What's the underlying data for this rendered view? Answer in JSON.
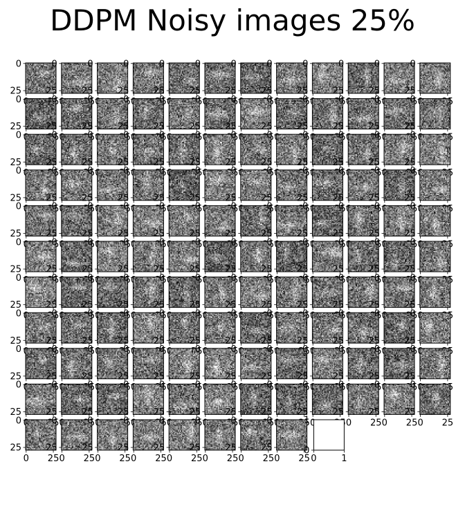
{
  "title": "DDPM Noisy images 25%",
  "chart_data": {
    "type": "image-grid",
    "title": "DDPM Noisy images 25%",
    "grid": {
      "rows": 11,
      "cols": 12
    },
    "image_count": 128,
    "image_size": [
      28,
      28
    ],
    "colormap": "gray",
    "image_axis": {
      "xticks": [
        0,
        25
      ],
      "yticks": [
        0,
        25
      ],
      "xtick_labels": [
        "0",
        "25"
      ],
      "ytick_labels": [
        "0",
        "25"
      ]
    },
    "empty_axis": {
      "xlim": [
        0,
        1
      ],
      "ylim": [
        0,
        1
      ],
      "xtick_labels": [
        "0",
        "1"
      ],
      "ytick_labels": [
        "0",
        "1"
      ]
    }
  }
}
